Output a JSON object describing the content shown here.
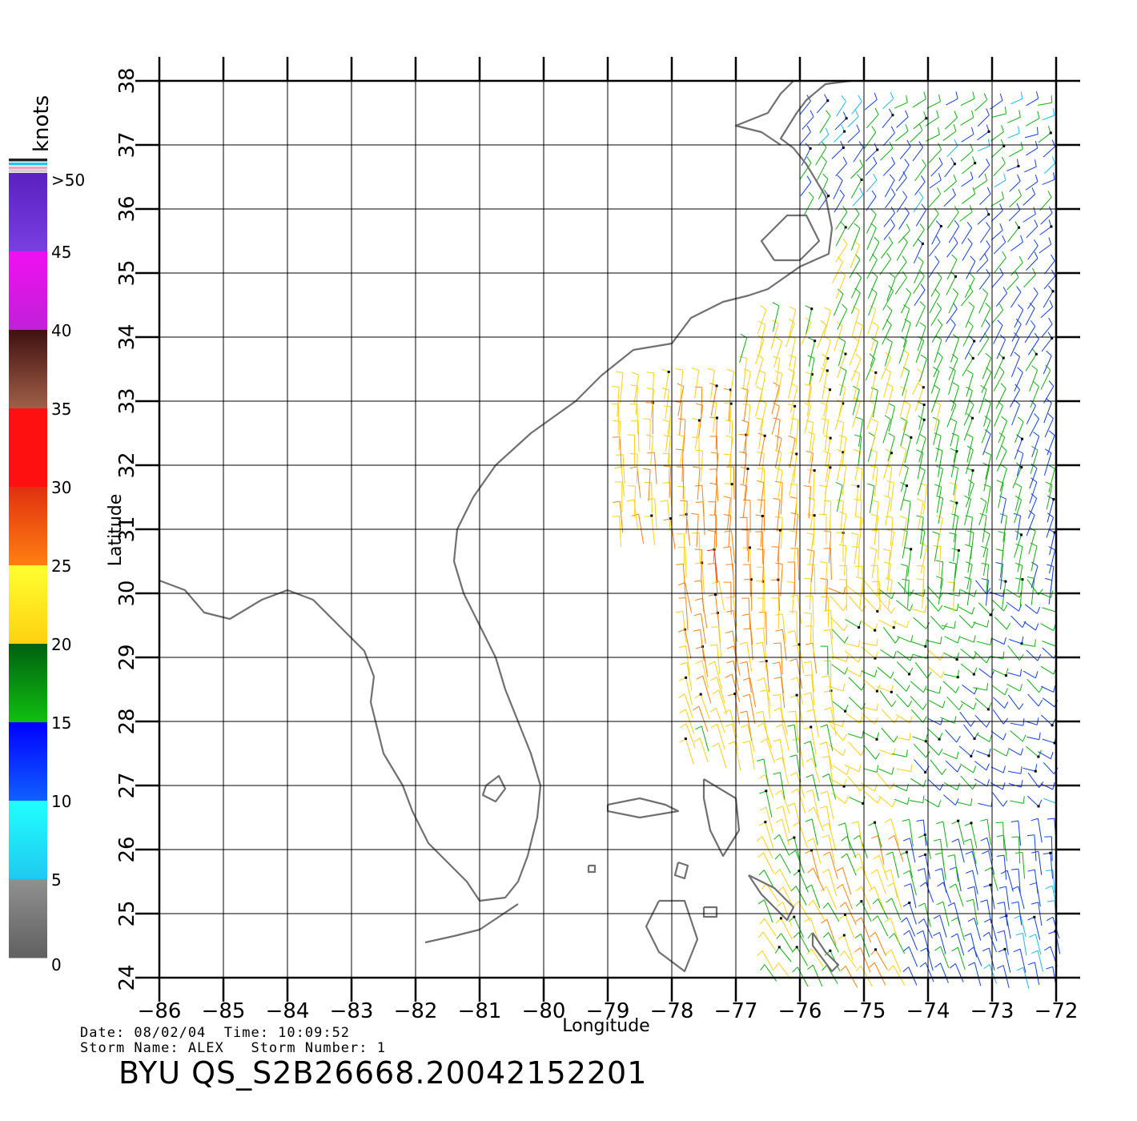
{
  "colorbar": {
    "unit_label": "knots",
    "labels": [
      ">50",
      "45",
      "40",
      "35",
      "30",
      "25",
      "20",
      "15",
      "10",
      "5",
      "0"
    ],
    "segment_colors": [
      "#7a3fe0",
      "#c020d8",
      "#a06048",
      "#ff1010",
      "#ff8010",
      "#ffd010",
      "#10c010",
      "#1060ff",
      "#20c8f0",
      "#606060"
    ]
  },
  "map": {
    "x_axis_label": "Longitude",
    "y_axis_label": "Latitude",
    "x_ticks": [
      -86,
      -85,
      -84,
      -83,
      -82,
      -81,
      -80,
      -79,
      -78,
      -77,
      -76,
      -75,
      -74,
      -73,
      -72
    ],
    "y_ticks": [
      24,
      25,
      26,
      27,
      28,
      29,
      30,
      31,
      32,
      33,
      34,
      35,
      36,
      37,
      38
    ],
    "lon_range": [
      -86,
      -72
    ],
    "lat_range": [
      24,
      38
    ],
    "coast_color": "#707070"
  },
  "footer": {
    "date_line": "Date: 08/02/04  Time: 10:09:52",
    "storm_line": "Storm Name: ALEX   Storm Number: 1",
    "product_id": "BYU QS_S2B26668.20042152201"
  }
}
